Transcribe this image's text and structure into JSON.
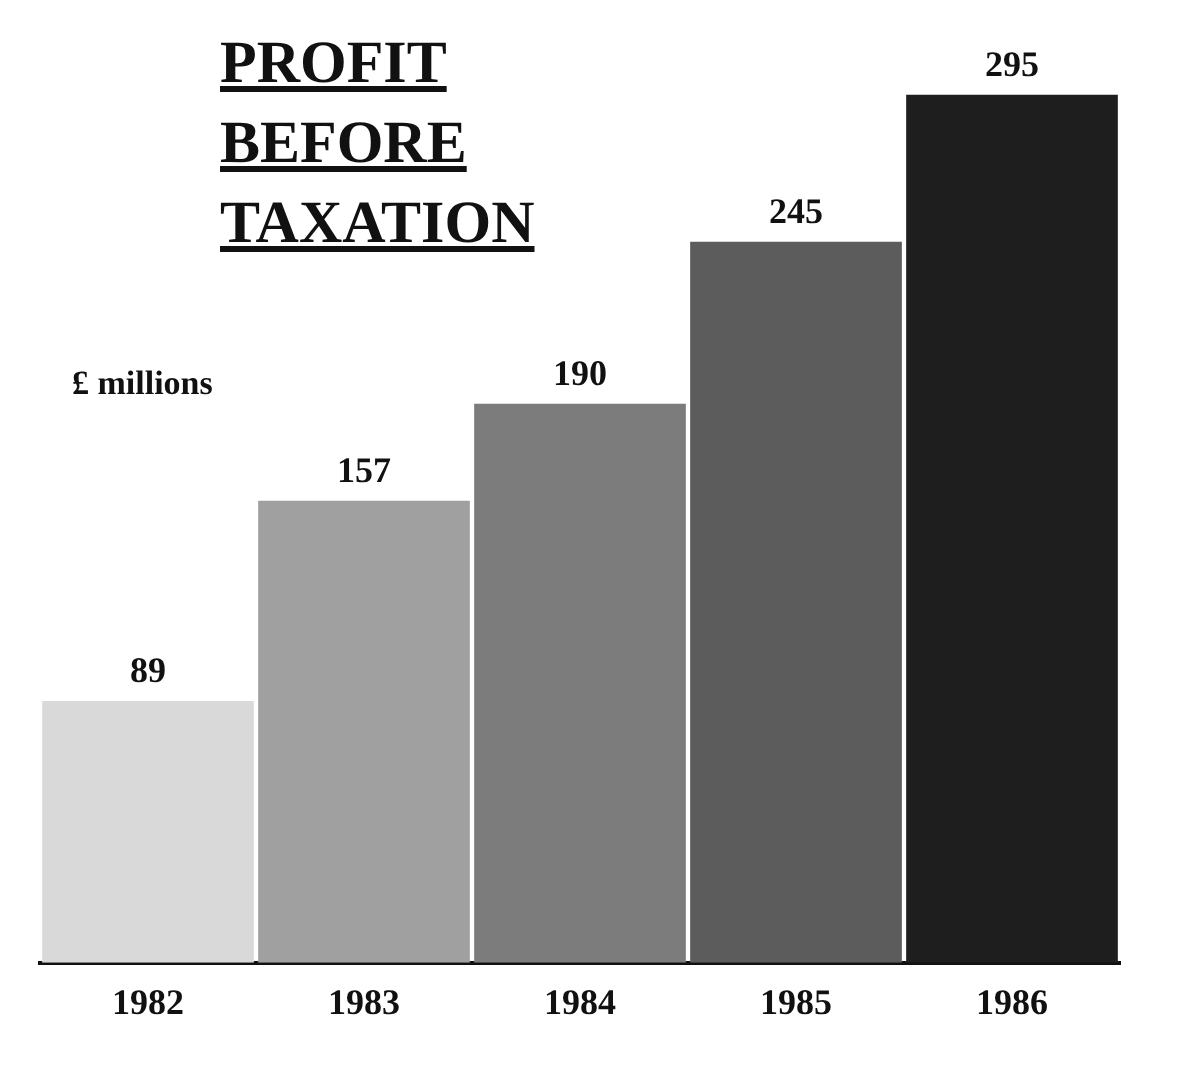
{
  "chart_data": {
    "type": "bar",
    "title": "PROFIT BEFORE TAXATION",
    "ylabel": "£ millions",
    "categories": [
      "1982",
      "1983",
      "1984",
      "1985",
      "1986"
    ],
    "values": [
      89,
      157,
      190,
      245,
      295
    ],
    "colors": [
      "#d9d9d9",
      "#a0a0a0",
      "#7c7c7c",
      "#5c5c5c",
      "#1e1e1e"
    ],
    "data_labels": true,
    "grid": false,
    "legend": false
  }
}
